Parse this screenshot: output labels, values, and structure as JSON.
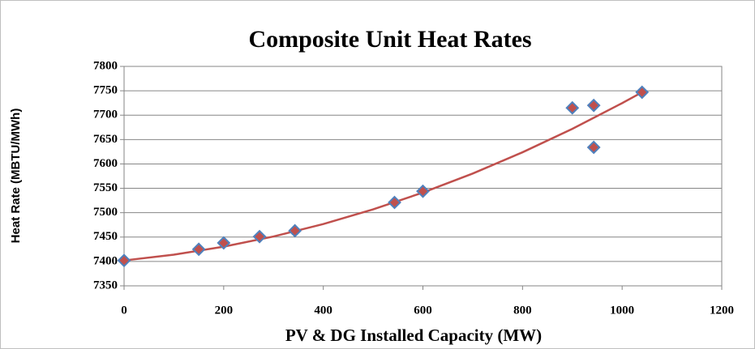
{
  "chart_data": {
    "type": "scatter",
    "title": "Composite Unit Heat Rates",
    "x_label": "PV & DG Installed Capacity (MW)",
    "y_label": "Heat Rate (MBTU/MWh)",
    "x": [
      0,
      150,
      200,
      272,
      343,
      543,
      600,
      900,
      943,
      943,
      1040
    ],
    "values": [
      7402,
      7425,
      7438,
      7451,
      7463,
      7521,
      7544,
      7715,
      7720,
      7634,
      7747
    ],
    "color": "#c0504d",
    "edge_color": "#4f81bd",
    "trendline": {
      "color": "#c0504d",
      "x": [
        0,
        100,
        200,
        300,
        400,
        500,
        600,
        700,
        800,
        900,
        1000,
        1040
      ],
      "values": [
        7402,
        7413.9,
        7430.3,
        7451.2,
        7476.7,
        7506.8,
        7541.3,
        7580.3,
        7623.9,
        7672.0,
        7724.7,
        7747.0
      ]
    },
    "xlim": [
      0,
      1200
    ],
    "xticks": [
      0,
      200,
      400,
      600,
      800,
      1000,
      1200
    ],
    "ylim": [
      7350,
      7800
    ],
    "yticks": [
      7350,
      7400,
      7450,
      7500,
      7550,
      7600,
      7650,
      7700,
      7750,
      7800
    ],
    "grid": true
  }
}
